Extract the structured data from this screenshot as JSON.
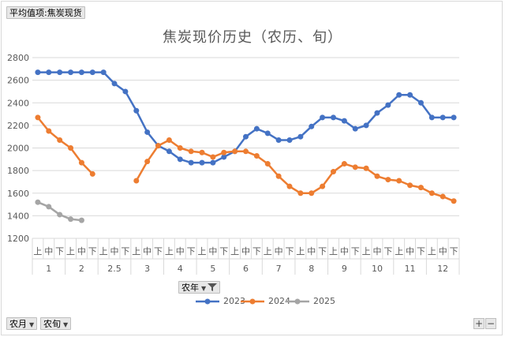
{
  "filter_button": "平均值项:焦炭现货",
  "series_field_button": "农年",
  "row_field_buttons": [
    "农月",
    "农旬"
  ],
  "zoom_buttons": [
    "+",
    "−"
  ],
  "icons": [
    "dropdown-arrow-icon",
    "filter-icon",
    "plus-icon",
    "minus-icon"
  ],
  "colors": {
    "2023": "#4472c4",
    "2024": "#ed7d31",
    "2025": "#a5a5a5"
  },
  "chart_data": {
    "type": "line",
    "title": "焦炭现价历史（农历、旬）",
    "ylim": [
      1200,
      2800
    ],
    "yticks": [
      1200,
      1400,
      1600,
      1800,
      2000,
      2200,
      2400,
      2600,
      2800
    ],
    "grid": true,
    "legend": "bottom",
    "month_groups": [
      {
        "label": "1",
        "subs": [
          "上",
          "中",
          "下"
        ]
      },
      {
        "label": "2",
        "subs": [
          "上",
          "中",
          "下"
        ]
      },
      {
        "label": "2.5",
        "subs": [
          "上",
          "中",
          "下"
        ]
      },
      {
        "label": "3",
        "subs": [
          "上",
          "中",
          "下"
        ]
      },
      {
        "label": "4",
        "subs": [
          "上",
          "中",
          "下"
        ]
      },
      {
        "label": "5",
        "subs": [
          "上",
          "中",
          "下"
        ]
      },
      {
        "label": "6",
        "subs": [
          "上",
          "中",
          "下"
        ]
      },
      {
        "label": "7",
        "subs": [
          "上",
          "中",
          "下"
        ]
      },
      {
        "label": "8",
        "subs": [
          "上",
          "中",
          "下"
        ]
      },
      {
        "label": "9",
        "subs": [
          "上",
          "中",
          "下"
        ]
      },
      {
        "label": "10",
        "subs": [
          "上",
          "中",
          "下"
        ]
      },
      {
        "label": "11",
        "subs": [
          "上",
          "中",
          "下"
        ]
      },
      {
        "label": "12",
        "subs": [
          "上",
          "中",
          "下"
        ]
      }
    ],
    "series": [
      {
        "name": "2023",
        "values": [
          2670,
          2670,
          2670,
          2670,
          2670,
          2670,
          2670,
          2570,
          2500,
          2330,
          2140,
          2020,
          1970,
          1900,
          1870,
          1870,
          1870,
          1920,
          1970,
          2100,
          2170,
          2130,
          2070,
          2070,
          2100,
          2190,
          2270,
          2270,
          2240,
          2170,
          2200,
          2310,
          2380,
          2470,
          2470,
          2400,
          2270,
          2270,
          2270
        ]
      },
      {
        "name": "2024",
        "values": [
          2270,
          2150,
          2070,
          2000,
          1870,
          1770,
          null,
          null,
          null,
          1710,
          1880,
          2020,
          2070,
          2000,
          1970,
          1960,
          1920,
          1960,
          1970,
          1970,
          1930,
          1860,
          1750,
          1660,
          1600,
          1600,
          1660,
          1790,
          1860,
          1830,
          1820,
          1750,
          1720,
          1710,
          1670,
          1650,
          1600,
          1570,
          1530
        ]
      },
      {
        "name": "2025",
        "values": [
          1520,
          1480,
          1410,
          1370,
          1360,
          null,
          null,
          null,
          null,
          null,
          null,
          null,
          null,
          null,
          null,
          null,
          null,
          null,
          null,
          null,
          null,
          null,
          null,
          null,
          null,
          null,
          null,
          null,
          null,
          null,
          null,
          null,
          null,
          null,
          null,
          null,
          null,
          null,
          null
        ]
      }
    ]
  }
}
